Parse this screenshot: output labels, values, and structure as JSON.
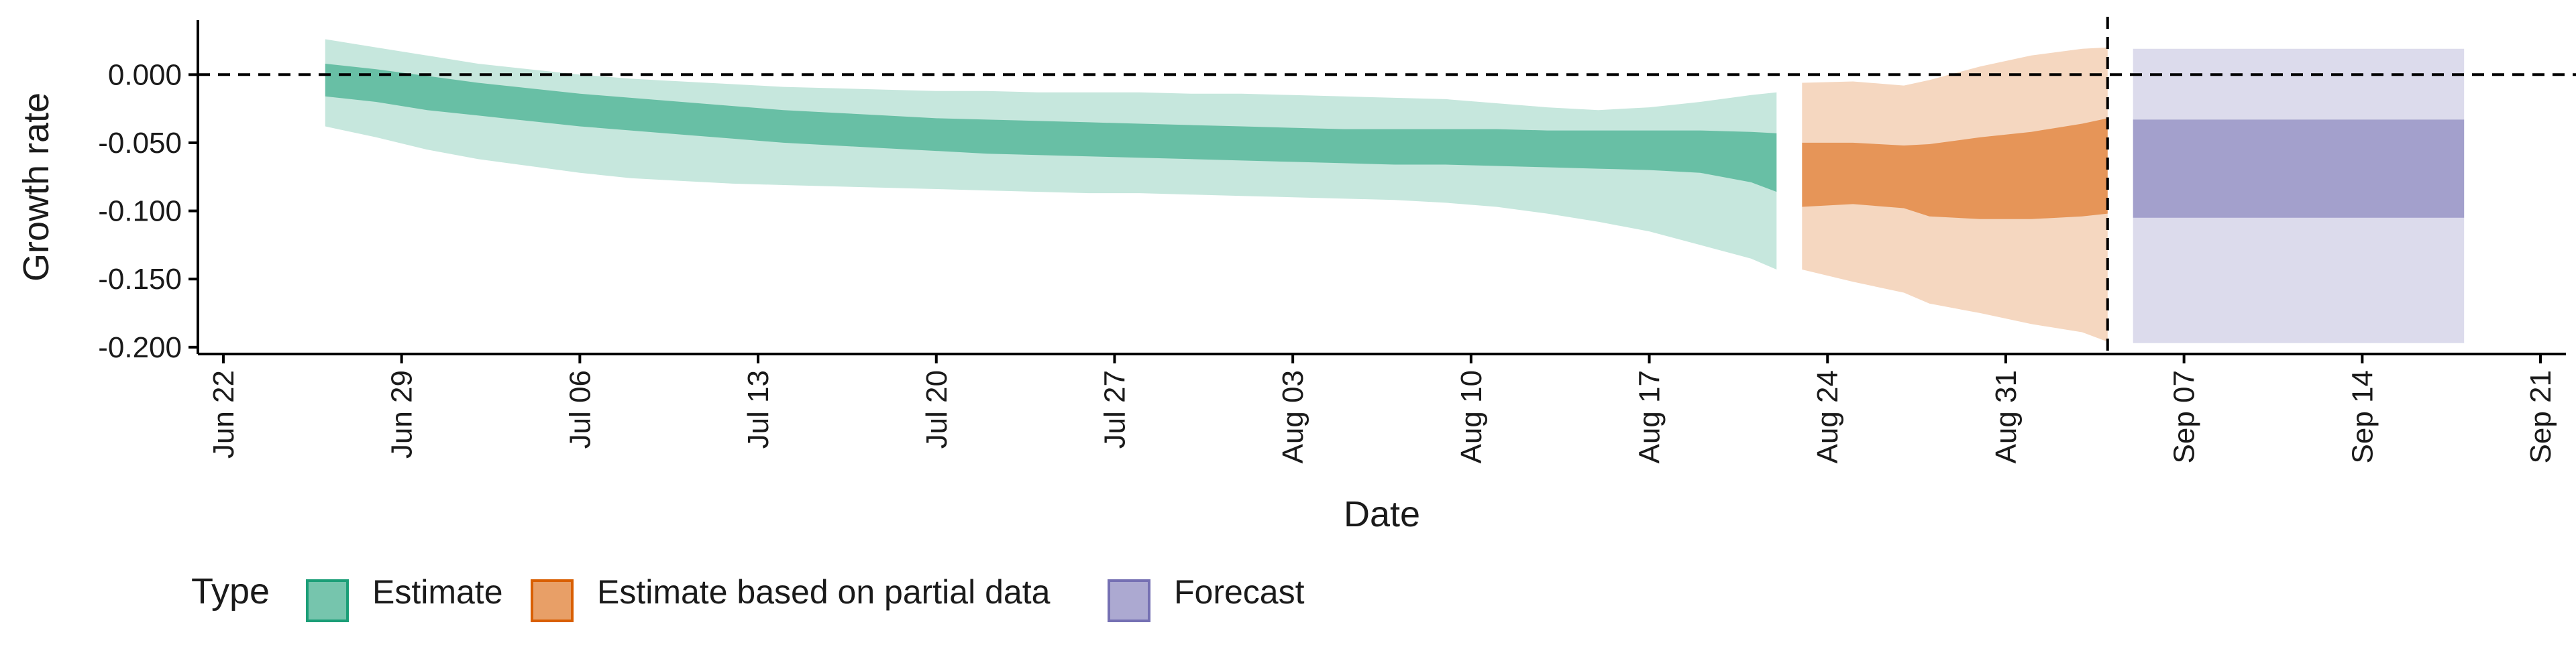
{
  "chart_data": {
    "type": "area",
    "title": "",
    "xlabel": "Date",
    "ylabel": "Growth rate",
    "grid": false,
    "legend_position": "bottom-left",
    "xlim": [
      "2020-06-21",
      "2020-09-22"
    ],
    "ylim": [
      -0.205,
      0.04
    ],
    "x_ticks": [
      {
        "date": "2020-06-22",
        "label": "Jun 22"
      },
      {
        "date": "2020-06-29",
        "label": "Jun 29"
      },
      {
        "date": "2020-07-06",
        "label": "Jul 06"
      },
      {
        "date": "2020-07-13",
        "label": "Jul 13"
      },
      {
        "date": "2020-07-20",
        "label": "Jul 20"
      },
      {
        "date": "2020-07-27",
        "label": "Jul 27"
      },
      {
        "date": "2020-08-03",
        "label": "Aug 03"
      },
      {
        "date": "2020-08-10",
        "label": "Aug 10"
      },
      {
        "date": "2020-08-17",
        "label": "Aug 17"
      },
      {
        "date": "2020-08-24",
        "label": "Aug 24"
      },
      {
        "date": "2020-08-31",
        "label": "Aug 31"
      },
      {
        "date": "2020-09-07",
        "label": "Sep 07"
      },
      {
        "date": "2020-09-14",
        "label": "Sep 14"
      },
      {
        "date": "2020-09-21",
        "label": "Sep 21"
      }
    ],
    "y_ticks": [
      {
        "value": 0.0,
        "label": "0.000"
      },
      {
        "value": -0.05,
        "label": "-0.050"
      },
      {
        "value": -0.1,
        "label": "-0.100"
      },
      {
        "value": -0.15,
        "label": "-0.150"
      },
      {
        "value": -0.2,
        "label": "-0.200"
      }
    ],
    "reference_lines": {
      "horizontal_y": 0.0,
      "vertical_date": "2020-09-04"
    },
    "series": [
      {
        "name": "Estimate",
        "color": "#1b9e77",
        "points": [
          {
            "date": "2020-06-26",
            "outer": [
              -0.038,
              0.026
            ],
            "inner": [
              -0.016,
              0.008
            ]
          },
          {
            "date": "2020-06-28",
            "outer": [
              -0.046,
              0.02
            ],
            "inner": [
              -0.02,
              0.004
            ]
          },
          {
            "date": "2020-06-30",
            "outer": [
              -0.055,
              0.014
            ],
            "inner": [
              -0.026,
              -0.001
            ]
          },
          {
            "date": "2020-07-02",
            "outer": [
              -0.062,
              0.008
            ],
            "inner": [
              -0.03,
              -0.006
            ]
          },
          {
            "date": "2020-07-04",
            "outer": [
              -0.067,
              0.004
            ],
            "inner": [
              -0.034,
              -0.01
            ]
          },
          {
            "date": "2020-07-06",
            "outer": [
              -0.072,
              0.0
            ],
            "inner": [
              -0.038,
              -0.014
            ]
          },
          {
            "date": "2020-07-08",
            "outer": [
              -0.076,
              -0.003
            ],
            "inner": [
              -0.041,
              -0.017
            ]
          },
          {
            "date": "2020-07-10",
            "outer": [
              -0.078,
              -0.005
            ],
            "inner": [
              -0.044,
              -0.02
            ]
          },
          {
            "date": "2020-07-12",
            "outer": [
              -0.08,
              -0.007
            ],
            "inner": [
              -0.047,
              -0.023
            ]
          },
          {
            "date": "2020-07-14",
            "outer": [
              -0.081,
              -0.009
            ],
            "inner": [
              -0.05,
              -0.026
            ]
          },
          {
            "date": "2020-07-16",
            "outer": [
              -0.082,
              -0.01
            ],
            "inner": [
              -0.052,
              -0.028
            ]
          },
          {
            "date": "2020-07-18",
            "outer": [
              -0.083,
              -0.011
            ],
            "inner": [
              -0.054,
              -0.03
            ]
          },
          {
            "date": "2020-07-20",
            "outer": [
              -0.084,
              -0.012
            ],
            "inner": [
              -0.056,
              -0.032
            ]
          },
          {
            "date": "2020-07-22",
            "outer": [
              -0.085,
              -0.012
            ],
            "inner": [
              -0.058,
              -0.033
            ]
          },
          {
            "date": "2020-07-24",
            "outer": [
              -0.086,
              -0.013
            ],
            "inner": [
              -0.059,
              -0.034
            ]
          },
          {
            "date": "2020-07-26",
            "outer": [
              -0.087,
              -0.013
            ],
            "inner": [
              -0.06,
              -0.035
            ]
          },
          {
            "date": "2020-07-28",
            "outer": [
              -0.087,
              -0.013
            ],
            "inner": [
              -0.061,
              -0.036
            ]
          },
          {
            "date": "2020-07-30",
            "outer": [
              -0.088,
              -0.014
            ],
            "inner": [
              -0.062,
              -0.037
            ]
          },
          {
            "date": "2020-08-01",
            "outer": [
              -0.089,
              -0.014
            ],
            "inner": [
              -0.063,
              -0.038
            ]
          },
          {
            "date": "2020-08-03",
            "outer": [
              -0.09,
              -0.015
            ],
            "inner": [
              -0.064,
              -0.039
            ]
          },
          {
            "date": "2020-08-05",
            "outer": [
              -0.091,
              -0.016
            ],
            "inner": [
              -0.065,
              -0.04
            ]
          },
          {
            "date": "2020-08-07",
            "outer": [
              -0.092,
              -0.017
            ],
            "inner": [
              -0.066,
              -0.04
            ]
          },
          {
            "date": "2020-08-09",
            "outer": [
              -0.094,
              -0.018
            ],
            "inner": [
              -0.066,
              -0.04
            ]
          },
          {
            "date": "2020-08-11",
            "outer": [
              -0.097,
              -0.021
            ],
            "inner": [
              -0.067,
              -0.04
            ]
          },
          {
            "date": "2020-08-13",
            "outer": [
              -0.102,
              -0.024
            ],
            "inner": [
              -0.068,
              -0.041
            ]
          },
          {
            "date": "2020-08-15",
            "outer": [
              -0.108,
              -0.026
            ],
            "inner": [
              -0.069,
              -0.041
            ]
          },
          {
            "date": "2020-08-17",
            "outer": [
              -0.115,
              -0.024
            ],
            "inner": [
              -0.07,
              -0.041
            ]
          },
          {
            "date": "2020-08-19",
            "outer": [
              -0.125,
              -0.02
            ],
            "inner": [
              -0.072,
              -0.041
            ]
          },
          {
            "date": "2020-08-21",
            "outer": [
              -0.135,
              -0.015
            ],
            "inner": [
              -0.079,
              -0.042
            ]
          },
          {
            "date": "2020-08-22",
            "outer": [
              -0.143,
              -0.013
            ],
            "inner": [
              -0.086,
              -0.043
            ]
          }
        ]
      },
      {
        "name": "Estimate based on partial data",
        "color": "#d95f02",
        "points": [
          {
            "date": "2020-08-23",
            "outer": [
              -0.143,
              -0.006
            ],
            "inner": [
              -0.097,
              -0.05
            ]
          },
          {
            "date": "2020-08-25",
            "outer": [
              -0.152,
              -0.005
            ],
            "inner": [
              -0.095,
              -0.05
            ]
          },
          {
            "date": "2020-08-27",
            "outer": [
              -0.16,
              -0.008
            ],
            "inner": [
              -0.098,
              -0.052
            ]
          },
          {
            "date": "2020-08-28",
            "outer": [
              -0.168,
              -0.004
            ],
            "inner": [
              -0.104,
              -0.051
            ]
          },
          {
            "date": "2020-08-30",
            "outer": [
              -0.175,
              0.006
            ],
            "inner": [
              -0.106,
              -0.046
            ]
          },
          {
            "date": "2020-09-01",
            "outer": [
              -0.183,
              0.014
            ],
            "inner": [
              -0.106,
              -0.042
            ]
          },
          {
            "date": "2020-09-03",
            "outer": [
              -0.189,
              0.019
            ],
            "inner": [
              -0.104,
              -0.036
            ]
          },
          {
            "date": "2020-09-04",
            "outer": [
              -0.196,
              0.02
            ],
            "inner": [
              -0.102,
              -0.032
            ]
          }
        ]
      },
      {
        "name": "Forecast",
        "color": "#7570b3",
        "points": [
          {
            "date": "2020-09-05",
            "outer": [
              -0.197,
              0.019
            ],
            "inner": [
              -0.105,
              -0.033
            ]
          },
          {
            "date": "2020-09-18",
            "outer": [
              -0.197,
              0.019
            ],
            "inner": [
              -0.105,
              -0.033
            ]
          }
        ]
      }
    ],
    "legend": {
      "title": "Type",
      "entries": [
        "Estimate",
        "Estimate based on partial data",
        "Forecast"
      ]
    }
  }
}
